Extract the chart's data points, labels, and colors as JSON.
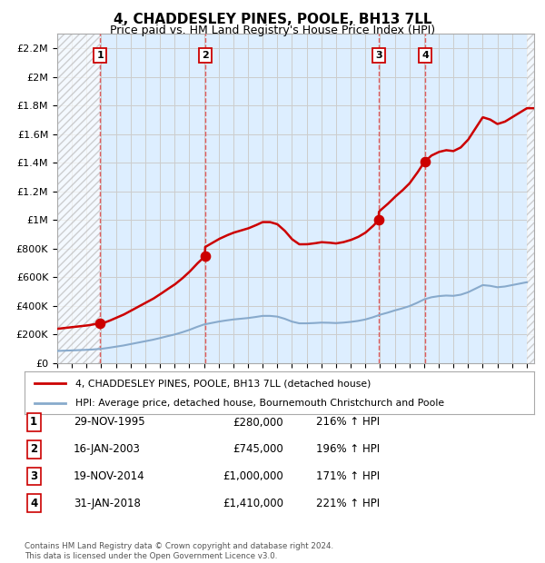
{
  "title": "4, CHADDESLEY PINES, POOLE, BH13 7LL",
  "subtitle": "Price paid vs. HM Land Registry's House Price Index (HPI)",
  "ylim": [
    0,
    2300000
  ],
  "yticks": [
    0,
    200000,
    400000,
    600000,
    800000,
    1000000,
    1200000,
    1400000,
    1600000,
    1800000,
    2000000,
    2200000
  ],
  "ytick_labels": [
    "£0",
    "£200K",
    "£400K",
    "£600K",
    "£800K",
    "£1M",
    "£1.2M",
    "£1.4M",
    "£1.6M",
    "£1.8M",
    "£2M",
    "£2.2M"
  ],
  "sale_prices": [
    280000,
    745000,
    1000000,
    1410000
  ],
  "sale_labels": [
    "1",
    "2",
    "3",
    "4"
  ],
  "sale_hpi_pct": [
    "216% ↑ HPI",
    "196% ↑ HPI",
    "171% ↑ HPI",
    "221% ↑ HPI"
  ],
  "sale_date_strs": [
    "29-NOV-1995",
    "16-JAN-2003",
    "19-NOV-2014",
    "31-JAN-2018"
  ],
  "sale_price_strs": [
    "£280,000",
    "£745,000",
    "£1,000,000",
    "£1,410,000"
  ],
  "red_line_color": "#cc0000",
  "blue_line_color": "#88aacc",
  "grid_color": "#cccccc",
  "vline_color": "#dd4444",
  "legend_label_red": "4, CHADDESLEY PINES, POOLE, BH13 7LL (detached house)",
  "legend_label_blue": "HPI: Average price, detached house, Bournemouth Christchurch and Poole",
  "footer": "Contains HM Land Registry data © Crown copyright and database right 2024.\nThis data is licensed under the Open Government Licence v3.0.",
  "background_color": "#ffffff",
  "chart_bg_color": "#ddeeff",
  "blue_x": [
    1993,
    1993.5,
    1994,
    1994.5,
    1995,
    1995.5,
    1996,
    1996.5,
    1997,
    1997.5,
    1998,
    1998.5,
    1999,
    1999.5,
    2000,
    2000.5,
    2001,
    2001.5,
    2002,
    2002.5,
    2003,
    2003.5,
    2004,
    2004.5,
    2005,
    2005.5,
    2006,
    2006.5,
    2007,
    2007.5,
    2008,
    2008.5,
    2009,
    2009.5,
    2010,
    2010.5,
    2011,
    2011.5,
    2012,
    2012.5,
    2013,
    2013.5,
    2014,
    2014.5,
    2015,
    2015.5,
    2016,
    2016.5,
    2017,
    2017.5,
    2018,
    2018.5,
    2019,
    2019.5,
    2020,
    2020.5,
    2021,
    2021.5,
    2022,
    2022.5,
    2023,
    2023.5,
    2024,
    2024.5,
    2025
  ],
  "blue_y": [
    85000,
    87000,
    89000,
    91000,
    93000,
    96000,
    100000,
    107000,
    115000,
    123000,
    133000,
    143000,
    153000,
    163000,
    175000,
    188000,
    200000,
    215000,
    232000,
    252000,
    270000,
    280000,
    290000,
    298000,
    305000,
    310000,
    315000,
    322000,
    330000,
    330000,
    325000,
    310000,
    290000,
    278000,
    278000,
    280000,
    283000,
    282000,
    280000,
    283000,
    288000,
    295000,
    305000,
    320000,
    338000,
    352000,
    368000,
    382000,
    398000,
    420000,
    445000,
    460000,
    468000,
    472000,
    470000,
    478000,
    495000,
    520000,
    545000,
    540000,
    530000,
    535000,
    545000,
    555000,
    565000
  ]
}
